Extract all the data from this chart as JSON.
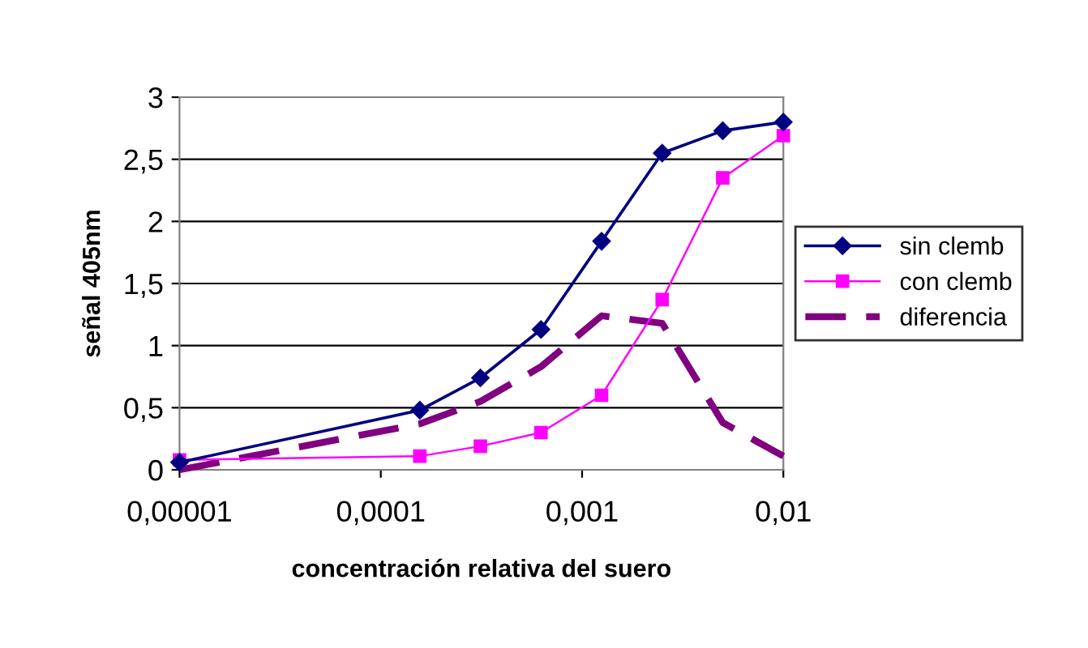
{
  "chart_data": {
    "type": "line",
    "xlabel": "concentración relativa del suero",
    "ylabel": "señal 405nm",
    "x": [
      1e-05,
      0.00015625,
      0.0003125,
      0.000625,
      0.00125,
      0.0025,
      0.005,
      0.01
    ],
    "series": [
      {
        "name": "sin clemb",
        "color": "#000080",
        "marker": "diamond",
        "line_style": "solid",
        "values": [
          0.06,
          0.48,
          0.74,
          1.13,
          1.84,
          2.55,
          2.73,
          2.8
        ]
      },
      {
        "name": "con clemb",
        "color": "#ff00ff",
        "marker": "square",
        "line_style": "solid",
        "values": [
          0.08,
          0.11,
          0.19,
          0.3,
          0.6,
          1.37,
          2.35,
          2.69
        ]
      },
      {
        "name": "diferencia",
        "color": "#800080",
        "marker": "none",
        "line_style": "dashed",
        "values": [
          0.0,
          0.37,
          0.55,
          0.83,
          1.24,
          1.18,
          0.38,
          0.11
        ]
      }
    ],
    "log": "x",
    "xlim": [
      1e-05,
      0.01
    ],
    "xticks": [
      {
        "value": 1e-05,
        "label": "0,00001"
      },
      {
        "value": 0.0001,
        "label": "0,0001"
      },
      {
        "value": 0.001,
        "label": "0,001"
      },
      {
        "value": 0.01,
        "label": "0,01"
      }
    ],
    "ylim": [
      0,
      3
    ],
    "yticks": [
      0,
      {
        "value": 0.5,
        "label": "0,5"
      },
      1,
      {
        "value": 1.5,
        "label": "1,5"
      },
      2,
      {
        "value": 2.5,
        "label": "2,5"
      },
      3
    ],
    "grid": "y",
    "legend": "right"
  }
}
